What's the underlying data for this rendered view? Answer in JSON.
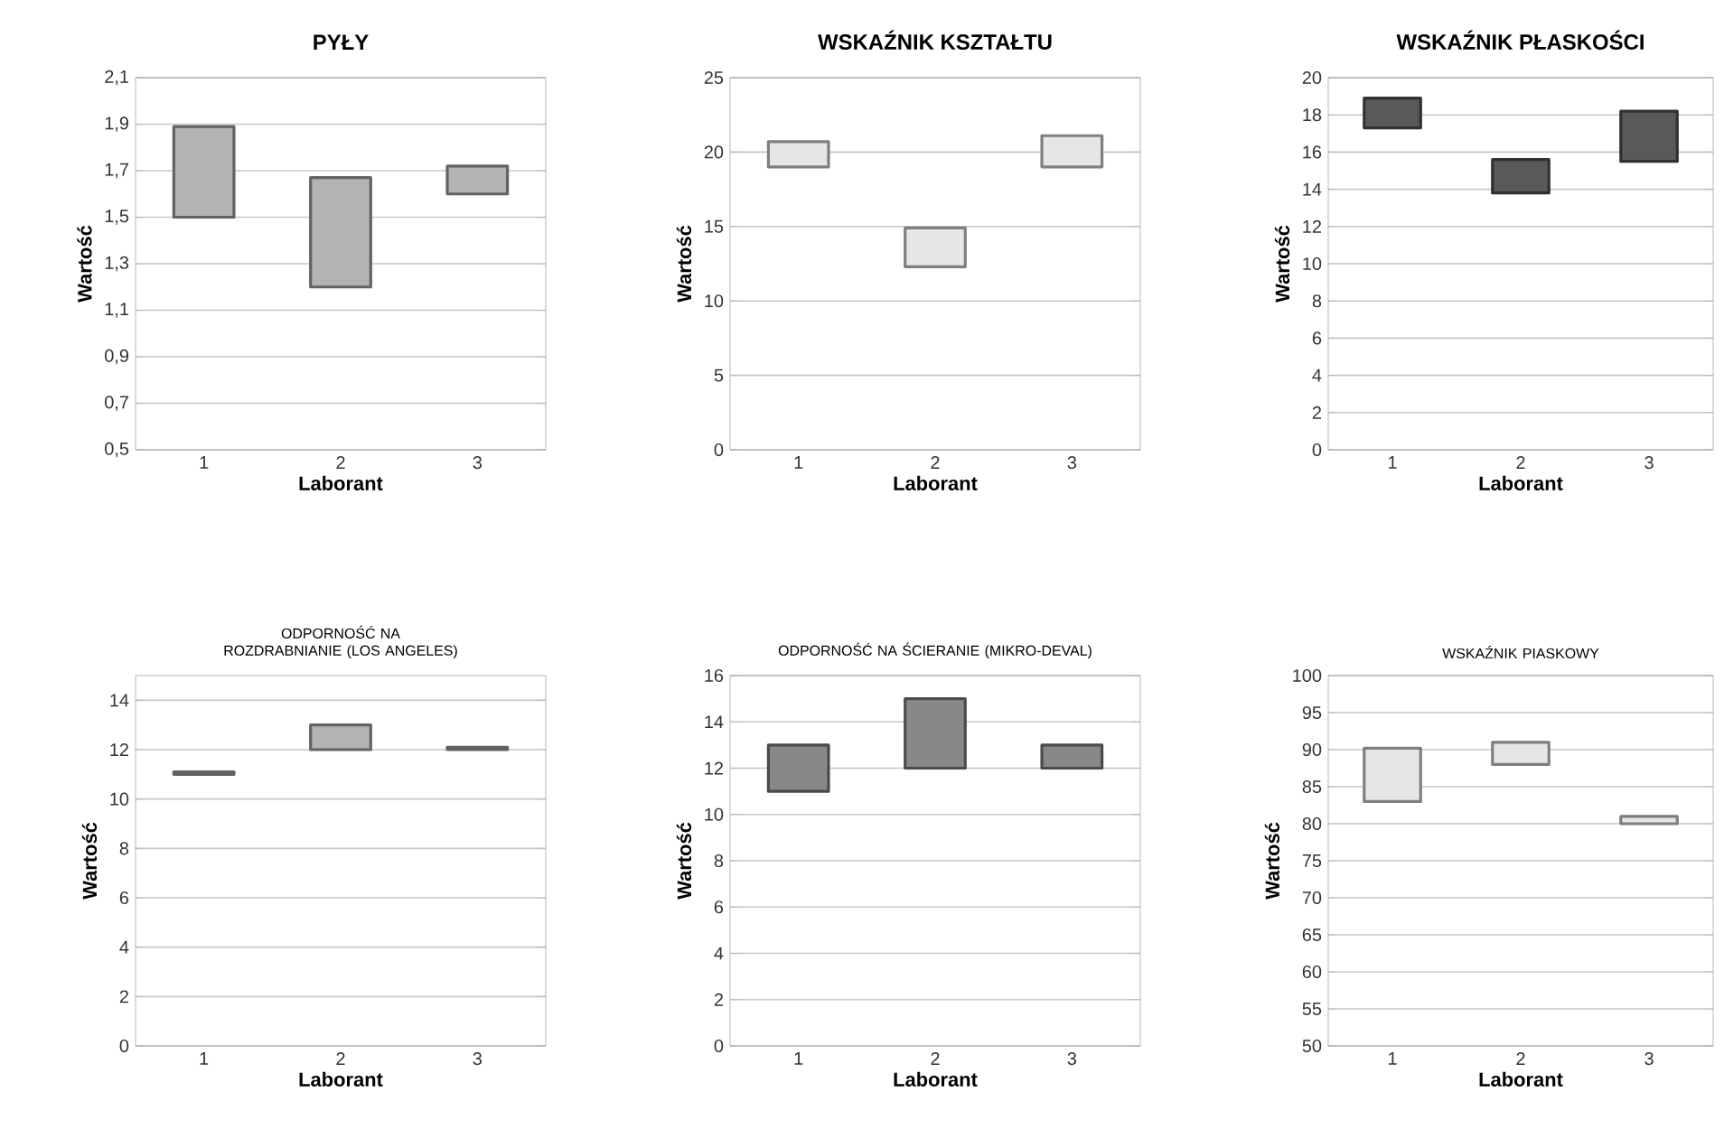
{
  "chart_data": [
    {
      "type": "bar",
      "title": "PYŁY",
      "xlabel": "Laborant",
      "ylabel": "Wartość",
      "categories": [
        "1",
        "2",
        "3"
      ],
      "base": [
        1.5,
        1.2,
        1.6
      ],
      "values": [
        0.39,
        0.47,
        0.12
      ],
      "color": "#b3b3b3",
      "ylim": [
        0.5,
        2.1
      ],
      "yticks": [
        {
          "value": 0.5,
          "label": "0,5"
        },
        {
          "value": 0.7,
          "label": "0,7"
        },
        {
          "value": 0.9,
          "label": "0,9"
        },
        {
          "value": 1.1,
          "label": "1,1"
        },
        {
          "value": 1.3,
          "label": "1,3"
        },
        {
          "value": 1.5,
          "label": "1,5"
        },
        {
          "value": 1.7,
          "label": "1,7"
        },
        {
          "value": 1.9,
          "label": "1,9"
        },
        {
          "value": 2.1,
          "label": "2,1"
        }
      ],
      "grid": "y"
    },
    {
      "type": "bar",
      "title": "WSKAŹNIK KSZTAŁTU",
      "xlabel": "Laborant",
      "ylabel": "Wartość",
      "categories": [
        "1",
        "2",
        "3"
      ],
      "base": [
        19,
        12.3,
        19
      ],
      "values": [
        1.7,
        2.6,
        2.1
      ],
      "color": "#e6e6e6",
      "ylim": [
        0,
        25
      ],
      "yticks": [
        0,
        5,
        10,
        15,
        20,
        25
      ],
      "grid": "y"
    },
    {
      "type": "bar",
      "title": "WSKAŹNIK PŁASKOŚCI",
      "xlabel": "Laborant",
      "ylabel": "Wartość",
      "categories": [
        "1",
        "2",
        "3"
      ],
      "base": [
        17.3,
        13.8,
        15.5
      ],
      "values": [
        1.6,
        1.8,
        2.7
      ],
      "color": "#595959",
      "ylim": [
        0,
        20
      ],
      "yticks": [
        0,
        2,
        4,
        6,
        8,
        10,
        12,
        14,
        16,
        18,
        20
      ],
      "grid": "y"
    },
    {
      "type": "bar",
      "title": "ODPORNOŚĆ NA ROZDRABNIANIE (LOS ANGELES)",
      "xlabel": "Laborant",
      "ylabel": "Wartość",
      "categories": [
        "1",
        "2",
        "3"
      ],
      "base": [
        11,
        12,
        12
      ],
      "values": [
        0.1,
        1,
        0.1
      ],
      "color": "#b3b3b3",
      "ylim": [
        0,
        15
      ],
      "yticks": [
        0,
        2,
        4,
        6,
        8,
        10,
        12,
        14
      ],
      "grid": "y"
    },
    {
      "type": "bar",
      "title": "ODPORNOŚĆ NA ŚCIERANIE (MIKRO-DEVAL)",
      "xlabel": "Laborant",
      "ylabel": "Wartość",
      "categories": [
        "1",
        "2",
        "3"
      ],
      "base": [
        11,
        12,
        12
      ],
      "values": [
        2,
        3,
        1
      ],
      "color": "#888888",
      "ylim": [
        0,
        16
      ],
      "yticks": [
        0,
        2,
        4,
        6,
        8,
        10,
        12,
        14,
        16
      ],
      "grid": "y"
    },
    {
      "type": "bar",
      "title": "WSKAŹNIK PIASKOWY",
      "xlabel": "Laborant",
      "ylabel": "Wartość",
      "categories": [
        "1",
        "2",
        "3"
      ],
      "base": [
        83,
        88,
        80
      ],
      "values": [
        7.2,
        3,
        1
      ],
      "color": "#e6e6e6",
      "ylim": [
        50,
        100
      ],
      "yticks": [
        50,
        55,
        60,
        65,
        70,
        75,
        80,
        85,
        90,
        95,
        100
      ],
      "grid": "y"
    }
  ]
}
